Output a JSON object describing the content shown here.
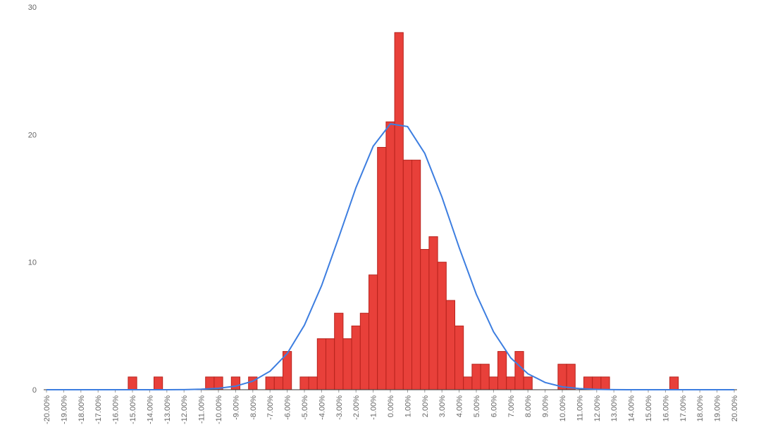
{
  "chart_data": {
    "type": "histogram",
    "bins": [
      -15.25,
      -14.75,
      -14.25,
      -13.75,
      -13.25,
      -12.75,
      -12.25,
      -11.75,
      -11.25,
      -10.75,
      -10.25,
      -9.75,
      -9.25,
      -8.75,
      -8.25,
      -7.75,
      -7.25,
      -6.75,
      -6.25,
      -5.75,
      -5.25,
      -4.75,
      -4.25,
      -3.75,
      -3.25,
      -2.75,
      -2.25,
      -1.75,
      -1.25,
      -0.75,
      -0.25,
      0.25,
      0.75,
      1.25,
      1.75,
      2.25,
      2.75,
      3.25,
      3.75,
      4.25,
      4.75,
      5.25,
      5.75,
      6.25,
      6.75,
      7.25,
      7.75,
      8.25,
      8.75,
      9.25,
      9.75,
      10.25,
      10.75,
      11.25,
      11.75,
      12.25,
      12.75,
      13.25,
      13.75,
      14.25,
      14.75,
      15.25,
      15.75,
      16.25,
      16.75
    ],
    "values": [
      1,
      0,
      0,
      1,
      0,
      0,
      0,
      0,
      0,
      1,
      1,
      0,
      1,
      0,
      1,
      0,
      1,
      1,
      3,
      0,
      1,
      1,
      4,
      4,
      6,
      4,
      5,
      6,
      9,
      19,
      21,
      28,
      18,
      18,
      11,
      12,
      10,
      7,
      5,
      1,
      2,
      2,
      1,
      3,
      1,
      3,
      1,
      0,
      0,
      0,
      2,
      2,
      0,
      1,
      1,
      1,
      0,
      0,
      0,
      0,
      0,
      0,
      0,
      1
    ],
    "color": "#e8403a",
    "curve": {
      "color": "#3d7ee0",
      "x": [
        -20,
        -19,
        -18,
        -17,
        -16,
        -15,
        -14,
        -13,
        -12,
        -11,
        -10,
        -9,
        -8,
        -7,
        -6,
        -5,
        -4,
        -3,
        -2,
        -1,
        0,
        1,
        2,
        3,
        4,
        5,
        6,
        7,
        8,
        9,
        10,
        11,
        12,
        13,
        14,
        15,
        16,
        17,
        18,
        19,
        20
      ],
      "values": [
        0,
        0,
        0,
        0,
        0,
        0,
        0,
        0,
        0.01,
        0.04,
        0.11,
        0.28,
        0.67,
        1.45,
        2.84,
        5.06,
        8.16,
        11.95,
        15.85,
        19.09,
        20.84,
        20.63,
        18.53,
        15.1,
        11.15,
        7.48,
        4.54,
        2.5,
        1.25,
        0.57,
        0.23,
        0.09,
        0.03,
        0.01,
        0,
        0,
        0,
        0,
        0,
        0,
        0
      ]
    },
    "xlim": [
      -20,
      20
    ],
    "xticks": [
      {
        "value": -20,
        "label": "-20.00%"
      },
      {
        "value": -19,
        "label": "-19.00%"
      },
      {
        "value": -18,
        "label": "-18.00%"
      },
      {
        "value": -17,
        "label": "-17.00%"
      },
      {
        "value": -16,
        "label": "-16.00%"
      },
      {
        "value": -15,
        "label": "-15.00%"
      },
      {
        "value": -14,
        "label": "-14.00%"
      },
      {
        "value": -13,
        "label": "-13.00%"
      },
      {
        "value": -12,
        "label": "-12.00%"
      },
      {
        "value": -11,
        "label": "-11.00%"
      },
      {
        "value": -10,
        "label": "-10.00%"
      },
      {
        "value": -9,
        "label": "-9.00%"
      },
      {
        "value": -8,
        "label": "-8.00%"
      },
      {
        "value": -7,
        "label": "-7.00%"
      },
      {
        "value": -6,
        "label": "-6.00%"
      },
      {
        "value": -5,
        "label": "-5.00%"
      },
      {
        "value": -4,
        "label": "-4.00%"
      },
      {
        "value": -3,
        "label": "-3.00%"
      },
      {
        "value": -2,
        "label": "-2.00%"
      },
      {
        "value": -1,
        "label": "-1.00%"
      },
      {
        "value": 0,
        "label": "0.00%"
      },
      {
        "value": 1,
        "label": "1.00%"
      },
      {
        "value": 2,
        "label": "2.00%"
      },
      {
        "value": 3,
        "label": "3.00%"
      },
      {
        "value": 4,
        "label": "4.00%"
      },
      {
        "value": 5,
        "label": "5.00%"
      },
      {
        "value": 6,
        "label": "6.00%"
      },
      {
        "value": 7,
        "label": "7.00%"
      },
      {
        "value": 8,
        "label": "8.00%"
      },
      {
        "value": 9,
        "label": "9.00%"
      },
      {
        "value": 10,
        "label": "10.00%"
      },
      {
        "value": 11,
        "label": "11.00%"
      },
      {
        "value": 12,
        "label": "12.00%"
      },
      {
        "value": 13,
        "label": "13.00%"
      },
      {
        "value": 14,
        "label": "14.00%"
      },
      {
        "value": 15,
        "label": "15.00%"
      },
      {
        "value": 16,
        "label": "16.00%"
      },
      {
        "value": 17,
        "label": "17.00%"
      },
      {
        "value": 18,
        "label": "18.00%"
      },
      {
        "value": 19,
        "label": "19.00%"
      },
      {
        "value": 20,
        "label": "20.00%"
      }
    ],
    "ylim": [
      0,
      30
    ],
    "yticks": [
      0,
      10,
      20,
      30
    ],
    "grid": false
  }
}
